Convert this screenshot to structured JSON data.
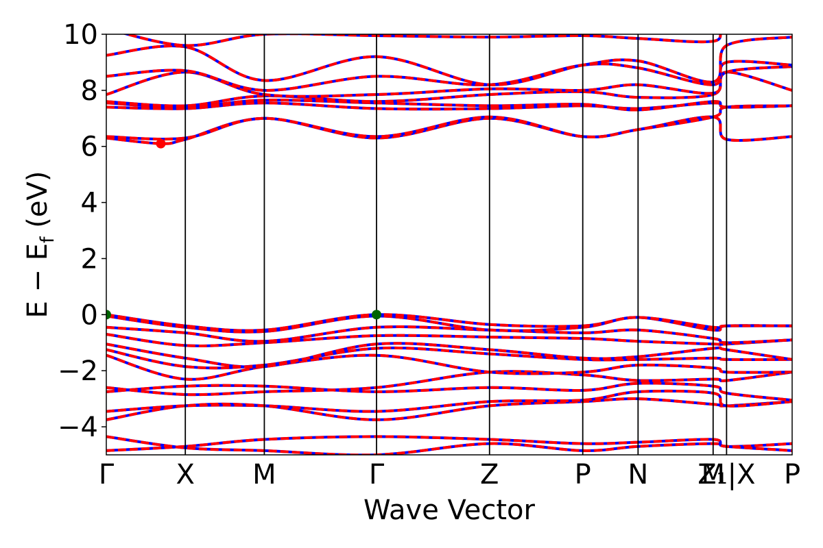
{
  "chart_data": {
    "type": "line",
    "title": "",
    "xlabel": "Wave Vector",
    "ylabel": "E − E_f (eV)",
    "ylabel_display": {
      "main": "E − E",
      "sub": "f",
      "tail": " (eV)"
    },
    "ylim": [
      -5,
      10
    ],
    "y_ticks": [
      -4,
      -2,
      0,
      2,
      4,
      6,
      8,
      10
    ],
    "y_tick_labels": [
      "−4",
      "−2",
      "0",
      "2",
      "4",
      "6",
      "8",
      "10"
    ],
    "xlim": [
      0,
      8.68
    ],
    "k_points": [
      {
        "label": "Γ",
        "x": 0
      },
      {
        "label": "X",
        "x": 1.0
      },
      {
        "label": "M",
        "x": 2.0
      },
      {
        "label": "Γ",
        "x": 3.42
      },
      {
        "label": "Z",
        "x": 4.85
      },
      {
        "label": "P",
        "x": 6.03
      },
      {
        "label": "N",
        "x": 6.73
      },
      {
        "label": "M",
        "x": 7.68
      },
      {
        "label": "Z₁|X",
        "x": 7.85
      },
      {
        "label": "P",
        "x": 8.68
      }
    ],
    "series_colors": {
      "up": "#ff0000",
      "down": "#0000ff"
    },
    "markers": [
      {
        "kind": "VBM",
        "x": 0,
        "y": 0.0,
        "color": "#006400"
      },
      {
        "kind": "VBM",
        "x": 3.42,
        "y": 0.0,
        "color": "#006400"
      },
      {
        "kind": "CBM",
        "x": 0.69,
        "y": 6.1,
        "color": "#ff0000"
      }
    ],
    "bands": [
      {
        "x": [
          0,
          1.0,
          2.0,
          3.42,
          4.85,
          6.03,
          6.73,
          7.68,
          7.85,
          8.68
        ],
        "y": [
          -4.85,
          -4.7,
          -4.45,
          -4.35,
          -4.45,
          -4.6,
          -4.55,
          -4.45,
          -4.7,
          -4.6
        ]
      },
      {
        "x": [
          0,
          1.0,
          2.0,
          3.42,
          4.85,
          6.03,
          6.73,
          7.68,
          7.85,
          8.68
        ],
        "y": [
          -4.35,
          -4.75,
          -4.85,
          -5.0,
          -4.6,
          -4.85,
          -4.7,
          -4.6,
          -4.7,
          -4.85
        ]
      },
      {
        "x": [
          0,
          1.0,
          2.0,
          3.42,
          4.85,
          6.03,
          6.73,
          7.68,
          7.85,
          8.68
        ],
        "y": [
          -3.75,
          -3.25,
          -3.25,
          -3.75,
          -3.25,
          -3.1,
          -3.0,
          -3.2,
          -3.25,
          -3.1
        ]
      },
      {
        "x": [
          0,
          1.0,
          2.0,
          3.42,
          4.85,
          6.03,
          6.73,
          7.68,
          7.85,
          8.68
        ],
        "y": [
          -3.45,
          -3.25,
          -3.25,
          -3.45,
          -3.1,
          -3.05,
          -2.75,
          -2.8,
          -3.25,
          -3.1
        ]
      },
      {
        "x": [
          0,
          1.0,
          2.0,
          3.42,
          4.85,
          6.03,
          6.73,
          7.68,
          7.85,
          8.68
        ],
        "y": [
          -2.75,
          -2.55,
          -2.55,
          -2.75,
          -2.6,
          -2.7,
          -2.45,
          -2.55,
          -2.8,
          -3.05
        ]
      },
      {
        "x": [
          0,
          1.0,
          2.0,
          3.42,
          4.85,
          6.03,
          6.73,
          7.68,
          7.85,
          8.68
        ],
        "y": [
          -2.6,
          -2.85,
          -2.75,
          -2.6,
          -2.05,
          -2.15,
          -2.35,
          -2.3,
          -2.35,
          -2.05
        ]
      },
      {
        "x": [
          0,
          1.0,
          2.0,
          3.42,
          4.85,
          6.03,
          6.73,
          7.68,
          7.85,
          8.68
        ],
        "y": [
          -1.45,
          -2.3,
          -1.85,
          -1.45,
          -2.05,
          -2.05,
          -1.8,
          -1.9,
          -2.05,
          -2.05
        ]
      },
      {
        "x": [
          0,
          1.0,
          2.0,
          3.42,
          4.85,
          6.03,
          6.73,
          7.68,
          7.85,
          8.68
        ],
        "y": [
          -1.25,
          -1.85,
          -1.8,
          -1.2,
          -1.4,
          -1.6,
          -1.6,
          -1.55,
          -1.6,
          -1.6
        ]
      },
      {
        "x": [
          0,
          1.0,
          2.0,
          3.42,
          4.85,
          6.03,
          6.73,
          7.68,
          7.85,
          8.68
        ],
        "y": [
          -1.05,
          -1.55,
          -1.85,
          -1.05,
          -1.25,
          -1.55,
          -1.5,
          -1.2,
          -1.25,
          -1.6
        ]
      },
      {
        "x": [
          0,
          1.0,
          2.0,
          3.42,
          4.85,
          6.03,
          6.73,
          7.68,
          7.85,
          8.68
        ],
        "y": [
          -0.7,
          -1.1,
          -1.0,
          -0.75,
          -0.8,
          -0.85,
          -0.95,
          -1.05,
          -1.05,
          -0.9
        ]
      },
      {
        "x": [
          0,
          1.0,
          2.0,
          3.42,
          4.85,
          6.03,
          6.73,
          7.68,
          7.85,
          8.68
        ],
        "y": [
          -0.45,
          -0.65,
          -0.95,
          -0.45,
          -0.55,
          -0.65,
          -0.55,
          -0.85,
          -1.0,
          -0.9
        ]
      },
      {
        "x": [
          0,
          1.0,
          2.0,
          3.42,
          4.85,
          6.03,
          6.73,
          7.68,
          7.85,
          8.68
        ],
        "y": [
          -0.05,
          -0.45,
          -0.6,
          -0.05,
          -0.55,
          -0.45,
          -0.1,
          -0.55,
          -0.4,
          -0.4
        ]
      },
      {
        "x": [
          0,
          1.0,
          2.0,
          3.42,
          4.85,
          6.03,
          6.73,
          7.68,
          7.85,
          8.68
        ],
        "y": [
          0.0,
          -0.4,
          -0.55,
          0.0,
          -0.35,
          -0.4,
          -0.1,
          -0.45,
          -0.4,
          -0.4
        ]
      },
      {
        "x": [
          0,
          0.69,
          1.0,
          2.0,
          3.42,
          4.85,
          6.03,
          6.73,
          7.68,
          7.85,
          8.68
        ],
        "y": [
          6.3,
          6.1,
          6.25,
          7.0,
          6.3,
          7.0,
          6.35,
          6.6,
          7.05,
          6.25,
          6.35
        ]
      },
      {
        "x": [
          0,
          1.0,
          2.0,
          3.42,
          4.85,
          6.03,
          6.73,
          7.68,
          7.85,
          8.68
        ],
        "y": [
          6.35,
          6.3,
          7.0,
          6.35,
          7.05,
          6.35,
          6.6,
          7.05,
          7.4,
          7.45
        ]
      },
      {
        "x": [
          0,
          1.0,
          2.0,
          3.42,
          4.85,
          6.03,
          6.73,
          7.68,
          7.85,
          8.68
        ],
        "y": [
          7.4,
          7.35,
          7.55,
          7.35,
          7.35,
          7.45,
          7.35,
          7.55,
          7.4,
          7.45
        ]
      },
      {
        "x": [
          0,
          1.0,
          2.0,
          3.42,
          4.85,
          6.03,
          6.73,
          7.68,
          7.85,
          8.68
        ],
        "y": [
          7.55,
          7.4,
          7.65,
          7.55,
          7.45,
          7.5,
          7.3,
          7.6,
          7.4,
          7.45
        ]
      },
      {
        "x": [
          0,
          1.0,
          2.0,
          3.42,
          4.85,
          6.03,
          6.73,
          7.68,
          7.85,
          8.68
        ],
        "y": [
          7.6,
          7.45,
          7.8,
          7.6,
          7.85,
          7.95,
          7.75,
          7.85,
          8.65,
          8.0
        ]
      },
      {
        "x": [
          0,
          1.0,
          2.0,
          3.42,
          4.85,
          6.03,
          6.73,
          7.68,
          7.85,
          8.68
        ],
        "y": [
          7.85,
          8.65,
          7.85,
          7.85,
          8.05,
          8.0,
          8.2,
          7.9,
          8.65,
          8.85
        ]
      },
      {
        "x": [
          0,
          1.0,
          2.0,
          3.42,
          4.85,
          6.03,
          6.73,
          7.68,
          7.85,
          8.68
        ],
        "y": [
          8.5,
          8.7,
          8.0,
          8.5,
          8.2,
          8.9,
          8.8,
          8.2,
          9.0,
          8.9
        ]
      },
      {
        "x": [
          0,
          1.0,
          2.0,
          3.42,
          4.85,
          6.03,
          6.73,
          7.68,
          7.85,
          8.68
        ],
        "y": [
          9.25,
          9.55,
          8.35,
          9.2,
          8.2,
          8.9,
          9.05,
          8.3,
          9.6,
          9.9
        ]
      },
      {
        "x": [
          0,
          1.0,
          2.0,
          3.42,
          4.85,
          6.03,
          6.73,
          7.68,
          7.85,
          8.68
        ],
        "y": [
          10.2,
          9.6,
          10.0,
          9.95,
          9.9,
          9.95,
          9.85,
          9.75,
          10.3,
          10.3
        ]
      }
    ]
  }
}
